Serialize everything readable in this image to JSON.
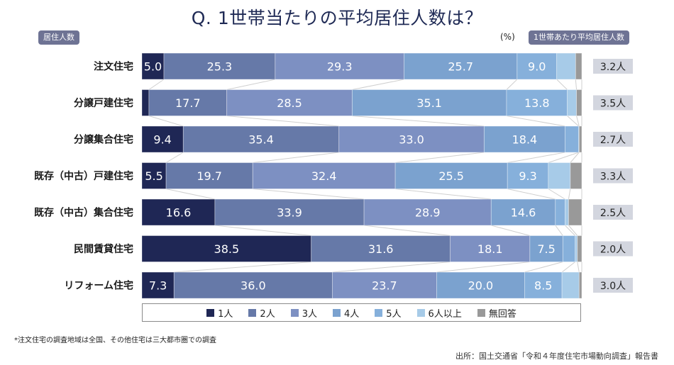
{
  "title": "Q. 1世帯当たりの平均居住人数は？",
  "left_pill": "居住人数",
  "right_pill": "1世帯あたり平均居住人数",
  "unit_label": "(%)",
  "note": "*注文住宅の調査地域は全国、その他住宅は三大都市圏での調査",
  "source": "出所：国土交通省「令和４年度住宅市場動向調査」報告書",
  "chart_data": {
    "type": "bar",
    "orientation": "horizontal-stacked-100",
    "title": "Q. 1世帯当たりの平均居住人数は？",
    "xlabel": "",
    "ylabel": "居住人数",
    "unit": "%",
    "xlim": [
      0,
      100
    ],
    "grid": false,
    "legend_position": "bottom",
    "categories": [
      "注文住宅",
      "分譲戸建住宅",
      "分譲集合住宅",
      "既存（中古）戸建住宅",
      "既存（中古）集合住宅",
      "民間賃貸住宅",
      "リフォーム住宅"
    ],
    "series": [
      {
        "name": "1人",
        "color": "#1f2755",
        "values": [
          5.0,
          1.6,
          9.4,
          5.5,
          16.6,
          38.5,
          7.3
        ],
        "labels": [
          "5.0",
          "",
          "9.4",
          "5.5",
          "16.6",
          "38.5",
          "7.3"
        ]
      },
      {
        "name": "2人",
        "color": "#6679a8",
        "values": [
          25.3,
          17.7,
          35.4,
          19.7,
          33.9,
          31.6,
          36.0
        ],
        "labels": [
          "25.3",
          "17.7",
          "35.4",
          "19.7",
          "33.9",
          "31.6",
          "36.0"
        ]
      },
      {
        "name": "3人",
        "color": "#7d90c2",
        "values": [
          29.3,
          28.5,
          33.0,
          32.4,
          28.9,
          18.1,
          23.7
        ],
        "labels": [
          "29.3",
          "28.5",
          "33.0",
          "32.4",
          "28.9",
          "18.1",
          "23.7"
        ]
      },
      {
        "name": "4人",
        "color": "#7ba2cf",
        "values": [
          25.7,
          35.1,
          18.4,
          25.5,
          14.6,
          7.5,
          20.0
        ],
        "labels": [
          "25.7",
          "35.1",
          "18.4",
          "25.5",
          "14.6",
          "7.5",
          "20.0"
        ]
      },
      {
        "name": "5人",
        "color": "#86b0db",
        "values": [
          9.0,
          13.8,
          3.1,
          9.3,
          2.2,
          2.8,
          8.5
        ],
        "labels": [
          "9.0",
          "13.8",
          "",
          "9.3",
          "",
          "",
          "8.5"
        ]
      },
      {
        "name": "6人以上",
        "color": "#a7cbe8",
        "values": [
          4.3,
          2.1,
          0.1,
          5.0,
          0.8,
          0.5,
          3.9
        ],
        "labels": [
          "",
          "",
          "",
          "",
          "",
          "",
          ""
        ]
      },
      {
        "name": "無回答",
        "color": "#999999",
        "values": [
          1.4,
          1.2,
          0.6,
          2.6,
          3.0,
          1.0,
          0.6
        ],
        "labels": [
          "",
          "",
          "",
          "",
          "",
          "",
          ""
        ]
      }
    ],
    "averages": [
      "3.2人",
      "3.5人",
      "2.7人",
      "3.3人",
      "2.5人",
      "2.0人",
      "3.0人"
    ]
  }
}
